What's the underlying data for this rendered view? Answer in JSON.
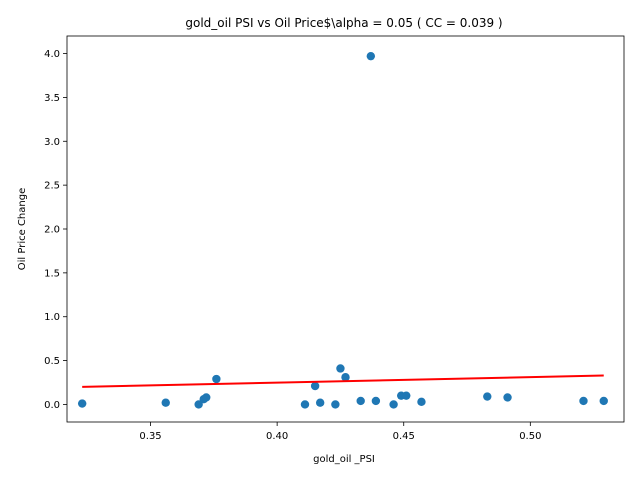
{
  "chart_data": {
    "type": "scatter",
    "title": "gold_oil  PSI vs Oil Price$\\alpha = 0.05 ( CC = 0.039 )",
    "xlabel": "gold_oil _PSI",
    "ylabel": "Oil Price Change",
    "xlim": [
      0.317,
      0.537
    ],
    "ylim": [
      -0.2,
      4.2
    ],
    "xticks": [
      0.35,
      0.4,
      0.45,
      0.5
    ],
    "xtick_labels": [
      "0.35",
      "0.40",
      "0.45",
      "0.50"
    ],
    "yticks": [
      0.0,
      0.5,
      1.0,
      1.5,
      2.0,
      2.5,
      3.0,
      3.5,
      4.0
    ],
    "ytick_labels": [
      "0.0",
      "0.5",
      "1.0",
      "1.5",
      "2.0",
      "2.5",
      "3.0",
      "3.5",
      "4.0"
    ],
    "grid": false,
    "colors": {
      "points": "#1f77b4",
      "fit_line": "#ff0000"
    },
    "series": [
      {
        "type": "scatter",
        "x": [
          0.323,
          0.356,
          0.369,
          0.371,
          0.372,
          0.376,
          0.411,
          0.415,
          0.417,
          0.423,
          0.425,
          0.427,
          0.433,
          0.437,
          0.439,
          0.446,
          0.449,
          0.451,
          0.457,
          0.483,
          0.491,
          0.521,
          0.529
        ],
        "y": [
          0.01,
          0.02,
          0.0,
          0.06,
          0.08,
          0.29,
          0.0,
          0.21,
          0.02,
          0.0,
          0.41,
          0.31,
          0.04,
          3.97,
          0.04,
          0.0,
          0.1,
          0.1,
          0.03,
          0.09,
          0.08,
          0.04,
          0.04
        ]
      },
      {
        "type": "line",
        "x": [
          0.323,
          0.529
        ],
        "y": [
          0.2,
          0.33
        ]
      }
    ]
  }
}
